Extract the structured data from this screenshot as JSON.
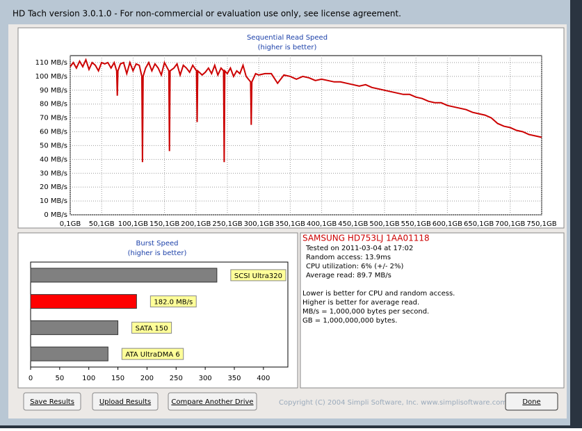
{
  "window": {
    "title": "HD Tach version 3.0.1.0  - For non-commercial or evaluation use only, see license agreement."
  },
  "chart_data": [
    {
      "type": "line",
      "title": "Sequential Read Speed",
      "subtitle": "(higher is better)",
      "x": [
        0.1,
        5,
        10,
        15,
        20,
        25,
        30,
        35,
        40,
        45,
        50,
        55,
        60,
        65,
        70,
        74,
        75,
        76,
        80,
        85,
        90,
        95,
        100,
        105,
        110,
        114,
        115,
        116,
        120,
        125,
        130,
        135,
        140,
        145,
        150,
        157,
        158,
        159,
        165,
        170,
        175,
        180,
        185,
        190,
        195,
        201,
        202,
        203,
        210,
        215,
        220,
        225,
        230,
        235,
        240,
        244,
        245,
        246,
        250,
        255,
        260,
        265,
        270,
        275,
        280,
        287,
        288,
        289,
        295,
        300,
        310,
        320,
        330,
        340,
        350,
        360,
        370,
        380,
        390,
        400,
        410,
        420,
        430,
        440,
        450,
        460,
        470,
        480,
        490,
        500,
        510,
        520,
        530,
        540,
        550,
        560,
        570,
        580,
        590,
        600,
        610,
        620,
        630,
        640,
        650,
        660,
        670,
        680,
        690,
        700,
        710,
        720,
        730,
        740,
        750.1
      ],
      "series": [
        {
          "color": "#cc0000",
          "values": [
            107,
            110,
            106,
            111,
            107,
            112,
            105,
            110,
            108,
            104,
            110,
            109,
            110,
            106,
            110,
            104,
            86,
            104,
            109,
            110,
            102,
            110,
            104,
            109,
            108,
            100,
            38,
            100,
            106,
            110,
            104,
            109,
            106,
            101,
            110,
            104,
            46,
            104,
            106,
            109,
            101,
            108,
            106,
            103,
            108,
            104,
            67,
            104,
            101,
            103,
            106,
            102,
            108,
            101,
            106,
            104,
            38,
            104,
            102,
            106,
            100,
            104,
            102,
            108,
            100,
            96,
            65,
            96,
            102,
            101,
            102,
            102,
            95,
            101,
            100,
            98,
            100,
            99,
            97,
            98,
            97,
            96,
            96,
            95,
            94,
            93,
            94,
            92,
            91,
            90,
            89,
            88,
            87,
            87,
            85,
            84,
            82,
            81,
            81,
            79,
            78,
            77,
            76,
            74,
            73,
            72,
            70,
            66,
            64,
            63,
            61,
            60,
            58,
            57,
            56
          ]
        }
      ],
      "xlim": [
        0.1,
        750.1
      ],
      "xticks": [
        {
          "value": 0.1,
          "label": "0,1GB"
        },
        {
          "value": 50.1,
          "label": "50,1GB"
        },
        {
          "value": 100.1,
          "label": "100,1GB"
        },
        {
          "value": 150.1,
          "label": "150,1GB"
        },
        {
          "value": 200.1,
          "label": "200,1GB"
        },
        {
          "value": 250.1,
          "label": "250,1GB"
        },
        {
          "value": 300.1,
          "label": "300,1GB"
        },
        {
          "value": 350.1,
          "label": "350,1GB"
        },
        {
          "value": 400.1,
          "label": "400,1GB"
        },
        {
          "value": 450.1,
          "label": "450,1GB"
        },
        {
          "value": 500.1,
          "label": "500,1GB"
        },
        {
          "value": 550.1,
          "label": "550,1GB"
        },
        {
          "value": 600.1,
          "label": "600,1GB"
        },
        {
          "value": 650.1,
          "label": "650,1GB"
        },
        {
          "value": 700.1,
          "label": "700,1GB"
        },
        {
          "value": 750.1,
          "label": "750,1GB"
        }
      ],
      "ylim": [
        0,
        115
      ],
      "yticks": [
        {
          "value": 0,
          "label": "0 MB/s"
        },
        {
          "value": 10,
          "label": "10 MB/s"
        },
        {
          "value": 20,
          "label": "20 MB/s"
        },
        {
          "value": 30,
          "label": "30 MB/s"
        },
        {
          "value": 40,
          "label": "40 MB/s"
        },
        {
          "value": 50,
          "label": "50 MB/s"
        },
        {
          "value": 60,
          "label": "60 MB/s"
        },
        {
          "value": 70,
          "label": "70 MB/s"
        },
        {
          "value": 80,
          "label": "80 MB/s"
        },
        {
          "value": 90,
          "label": "90 MB/s"
        },
        {
          "value": 100,
          "label": "100 MB/s"
        },
        {
          "value": 110,
          "label": "110 MB/s"
        }
      ],
      "grid": true
    },
    {
      "type": "hbar",
      "title": "Burst Speed",
      "subtitle": "(higher is better)",
      "categories": [
        "SCSI Ultra320",
        null,
        "SATA 150",
        "ATA UltraDMA 6"
      ],
      "values": [
        320,
        182,
        150,
        133
      ],
      "value_labels": [
        null,
        "182.0 MB/s",
        null,
        null
      ],
      "colors": [
        "#808080",
        "#ff0000",
        "#808080",
        "#808080"
      ],
      "xlim": [
        0,
        442
      ],
      "xticks": [
        0,
        50,
        100,
        150,
        200,
        250,
        300,
        350,
        400
      ]
    }
  ],
  "drive_info": {
    "model": "SAMSUNG HD753LJ 1AA01118",
    "lines": [
      "Tested on 2011-03-04 at 17:02",
      "Random access: 13.9ms",
      "CPU utilization: 6% (+/- 2%)",
      "Average read: 89.7 MB/s"
    ],
    "notes": [
      "Lower is better for CPU and random access.",
      "Higher is better for average read.",
      "MB/s = 1,000,000 bytes per second.",
      "GB = 1,000,000,000 bytes."
    ]
  },
  "buttons": [
    "Save Results",
    "Upload Results",
    "Compare Another Drive",
    "Done"
  ],
  "copyright": "Copyright (C) 2004 Simpli Software, Inc. www.simplisoftware.com"
}
